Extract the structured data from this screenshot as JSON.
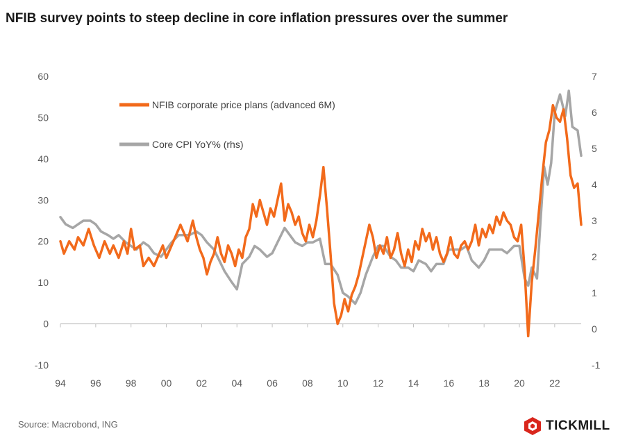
{
  "title": "NFIB survey points to steep decline in core inflation pressures over the summer",
  "source": "Source: Macrobond, ING",
  "logo": {
    "text": "TICKMILL",
    "icon": "tickmill-hexagon-icon"
  },
  "colors": {
    "nfib": "#f26a1b",
    "cpi": "#a6a6a6",
    "axis": "#bfbfbf"
  },
  "chart_data": {
    "type": "line",
    "title": "NFIB survey points to steep decline in core inflation pressures over the summer",
    "legend_placement": "top-left",
    "grid": false,
    "x_range": [
      1994,
      2023.5
    ],
    "x_ticks": [
      "94",
      "96",
      "98",
      "00",
      "02",
      "04",
      "06",
      "08",
      "10",
      "12",
      "14",
      "16",
      "18",
      "20",
      "22"
    ],
    "y_left": {
      "range": [
        -10,
        60
      ],
      "ticks": [
        "-10",
        "0",
        "10",
        "20",
        "30",
        "40",
        "50",
        "60"
      ]
    },
    "y_right": {
      "range": [
        -1,
        7
      ],
      "ticks": [
        "-1",
        "0",
        "1",
        "2",
        "3",
        "4",
        "5",
        "6",
        "7"
      ]
    },
    "series": [
      {
        "name": "NFIB corporate price plans (advanced 6M)",
        "axis": "left",
        "points": [
          [
            1994.0,
            20
          ],
          [
            1994.2,
            17
          ],
          [
            1994.5,
            20
          ],
          [
            1994.8,
            18
          ],
          [
            1995.0,
            21
          ],
          [
            1995.3,
            19
          ],
          [
            1995.6,
            23
          ],
          [
            1995.9,
            19
          ],
          [
            1996.2,
            16
          ],
          [
            1996.5,
            20
          ],
          [
            1996.8,
            17
          ],
          [
            1997.0,
            19
          ],
          [
            1997.3,
            16
          ],
          [
            1997.6,
            20
          ],
          [
            1997.8,
            17
          ],
          [
            1998.0,
            23
          ],
          [
            1998.2,
            18
          ],
          [
            1998.5,
            19
          ],
          [
            1998.7,
            14
          ],
          [
            1999.0,
            16
          ],
          [
            1999.3,
            14
          ],
          [
            1999.6,
            17
          ],
          [
            1999.8,
            19
          ],
          [
            2000.0,
            16
          ],
          [
            2000.3,
            19
          ],
          [
            2000.5,
            21
          ],
          [
            2000.8,
            24
          ],
          [
            2001.0,
            22
          ],
          [
            2001.2,
            20
          ],
          [
            2001.5,
            25
          ],
          [
            2001.7,
            21
          ],
          [
            2001.9,
            18
          ],
          [
            2002.1,
            16
          ],
          [
            2002.3,
            12
          ],
          [
            2002.5,
            15
          ],
          [
            2002.7,
            17
          ],
          [
            2002.9,
            21
          ],
          [
            2003.1,
            17
          ],
          [
            2003.3,
            15
          ],
          [
            2003.5,
            19
          ],
          [
            2003.7,
            17
          ],
          [
            2003.9,
            14
          ],
          [
            2004.1,
            18
          ],
          [
            2004.3,
            16
          ],
          [
            2004.5,
            21
          ],
          [
            2004.7,
            23
          ],
          [
            2004.9,
            29
          ],
          [
            2005.1,
            26
          ],
          [
            2005.3,
            30
          ],
          [
            2005.5,
            27
          ],
          [
            2005.7,
            24
          ],
          [
            2005.9,
            28
          ],
          [
            2006.1,
            26
          ],
          [
            2006.3,
            30
          ],
          [
            2006.5,
            34
          ],
          [
            2006.7,
            25
          ],
          [
            2006.9,
            29
          ],
          [
            2007.1,
            27
          ],
          [
            2007.3,
            24
          ],
          [
            2007.5,
            26
          ],
          [
            2007.7,
            22
          ],
          [
            2007.9,
            20
          ],
          [
            2008.1,
            24
          ],
          [
            2008.3,
            21
          ],
          [
            2008.5,
            25
          ],
          [
            2008.7,
            31
          ],
          [
            2008.9,
            38
          ],
          [
            2009.1,
            28
          ],
          [
            2009.3,
            17
          ],
          [
            2009.5,
            5
          ],
          [
            2009.7,
            0
          ],
          [
            2009.9,
            2
          ],
          [
            2010.1,
            6
          ],
          [
            2010.3,
            3
          ],
          [
            2010.5,
            7
          ],
          [
            2010.7,
            9
          ],
          [
            2010.9,
            12
          ],
          [
            2011.1,
            16
          ],
          [
            2011.3,
            20
          ],
          [
            2011.5,
            24
          ],
          [
            2011.7,
            21
          ],
          [
            2011.9,
            16
          ],
          [
            2012.1,
            19
          ],
          [
            2012.3,
            17
          ],
          [
            2012.5,
            21
          ],
          [
            2012.7,
            16
          ],
          [
            2012.9,
            18
          ],
          [
            2013.1,
            22
          ],
          [
            2013.3,
            17
          ],
          [
            2013.5,
            14
          ],
          [
            2013.7,
            18
          ],
          [
            2013.9,
            15
          ],
          [
            2014.1,
            20
          ],
          [
            2014.3,
            18
          ],
          [
            2014.5,
            23
          ],
          [
            2014.7,
            20
          ],
          [
            2014.9,
            22
          ],
          [
            2015.1,
            18
          ],
          [
            2015.3,
            21
          ],
          [
            2015.5,
            17
          ],
          [
            2015.7,
            15
          ],
          [
            2015.9,
            17
          ],
          [
            2016.1,
            21
          ],
          [
            2016.3,
            17
          ],
          [
            2016.5,
            16
          ],
          [
            2016.7,
            19
          ],
          [
            2016.9,
            20
          ],
          [
            2017.1,
            18
          ],
          [
            2017.3,
            20
          ],
          [
            2017.5,
            24
          ],
          [
            2017.7,
            19
          ],
          [
            2017.9,
            23
          ],
          [
            2018.1,
            21
          ],
          [
            2018.3,
            24
          ],
          [
            2018.5,
            22
          ],
          [
            2018.7,
            26
          ],
          [
            2018.9,
            24
          ],
          [
            2019.1,
            27
          ],
          [
            2019.3,
            25
          ],
          [
            2019.5,
            24
          ],
          [
            2019.7,
            21
          ],
          [
            2019.9,
            20
          ],
          [
            2020.1,
            24
          ],
          [
            2020.3,
            13
          ],
          [
            2020.5,
            -3
          ],
          [
            2020.7,
            10
          ],
          [
            2020.9,
            18
          ],
          [
            2021.1,
            27
          ],
          [
            2021.3,
            36
          ],
          [
            2021.5,
            44
          ],
          [
            2021.7,
            47
          ],
          [
            2021.9,
            53
          ],
          [
            2022.1,
            50
          ],
          [
            2022.3,
            49
          ],
          [
            2022.5,
            52
          ],
          [
            2022.7,
            45
          ],
          [
            2022.9,
            36
          ],
          [
            2023.1,
            33
          ],
          [
            2023.3,
            34
          ],
          [
            2023.5,
            24
          ]
        ]
      },
      {
        "name": "Core CPI YoY% (rhs)",
        "axis": "right",
        "points": [
          [
            1994.0,
            3.1
          ],
          [
            1994.3,
            2.9
          ],
          [
            1994.7,
            2.8
          ],
          [
            1995.0,
            2.9
          ],
          [
            1995.3,
            3.0
          ],
          [
            1995.7,
            3.0
          ],
          [
            1996.0,
            2.9
          ],
          [
            1996.3,
            2.7
          ],
          [
            1996.7,
            2.6
          ],
          [
            1997.0,
            2.5
          ],
          [
            1997.3,
            2.6
          ],
          [
            1997.7,
            2.4
          ],
          [
            1998.0,
            2.3
          ],
          [
            1998.3,
            2.2
          ],
          [
            1998.7,
            2.4
          ],
          [
            1999.0,
            2.3
          ],
          [
            1999.3,
            2.1
          ],
          [
            1999.7,
            2.0
          ],
          [
            2000.0,
            2.2
          ],
          [
            2000.3,
            2.4
          ],
          [
            2000.7,
            2.6
          ],
          [
            2001.0,
            2.6
          ],
          [
            2001.3,
            2.6
          ],
          [
            2001.7,
            2.7
          ],
          [
            2002.0,
            2.6
          ],
          [
            2002.3,
            2.4
          ],
          [
            2002.7,
            2.2
          ],
          [
            2003.0,
            1.9
          ],
          [
            2003.3,
            1.6
          ],
          [
            2003.7,
            1.3
          ],
          [
            2004.0,
            1.1
          ],
          [
            2004.3,
            1.8
          ],
          [
            2004.7,
            2.0
          ],
          [
            2005.0,
            2.3
          ],
          [
            2005.3,
            2.2
          ],
          [
            2005.7,
            2.0
          ],
          [
            2006.0,
            2.1
          ],
          [
            2006.3,
            2.4
          ],
          [
            2006.7,
            2.8
          ],
          [
            2007.0,
            2.6
          ],
          [
            2007.3,
            2.4
          ],
          [
            2007.7,
            2.3
          ],
          [
            2008.0,
            2.4
          ],
          [
            2008.3,
            2.4
          ],
          [
            2008.7,
            2.5
          ],
          [
            2009.0,
            1.8
          ],
          [
            2009.3,
            1.8
          ],
          [
            2009.7,
            1.5
          ],
          [
            2010.0,
            1.0
          ],
          [
            2010.3,
            0.9
          ],
          [
            2010.7,
            0.7
          ],
          [
            2011.0,
            1.0
          ],
          [
            2011.3,
            1.5
          ],
          [
            2011.7,
            2.0
          ],
          [
            2012.0,
            2.3
          ],
          [
            2012.3,
            2.3
          ],
          [
            2012.7,
            2.0
          ],
          [
            2013.0,
            1.9
          ],
          [
            2013.3,
            1.7
          ],
          [
            2013.7,
            1.7
          ],
          [
            2014.0,
            1.6
          ],
          [
            2014.3,
            1.9
          ],
          [
            2014.7,
            1.8
          ],
          [
            2015.0,
            1.6
          ],
          [
            2015.3,
            1.8
          ],
          [
            2015.7,
            1.8
          ],
          [
            2016.0,
            2.2
          ],
          [
            2016.3,
            2.2
          ],
          [
            2016.7,
            2.2
          ],
          [
            2017.0,
            2.3
          ],
          [
            2017.3,
            1.9
          ],
          [
            2017.7,
            1.7
          ],
          [
            2018.0,
            1.9
          ],
          [
            2018.3,
            2.2
          ],
          [
            2018.7,
            2.2
          ],
          [
            2019.0,
            2.2
          ],
          [
            2019.3,
            2.1
          ],
          [
            2019.7,
            2.3
          ],
          [
            2020.0,
            2.3
          ],
          [
            2020.3,
            1.4
          ],
          [
            2020.5,
            1.2
          ],
          [
            2020.7,
            1.7
          ],
          [
            2021.0,
            1.4
          ],
          [
            2021.2,
            3.0
          ],
          [
            2021.4,
            4.5
          ],
          [
            2021.6,
            4.0
          ],
          [
            2021.8,
            4.6
          ],
          [
            2022.0,
            6.0
          ],
          [
            2022.3,
            6.5
          ],
          [
            2022.6,
            5.9
          ],
          [
            2022.8,
            6.6
          ],
          [
            2023.0,
            5.6
          ],
          [
            2023.3,
            5.5
          ],
          [
            2023.5,
            4.8
          ]
        ]
      }
    ]
  }
}
